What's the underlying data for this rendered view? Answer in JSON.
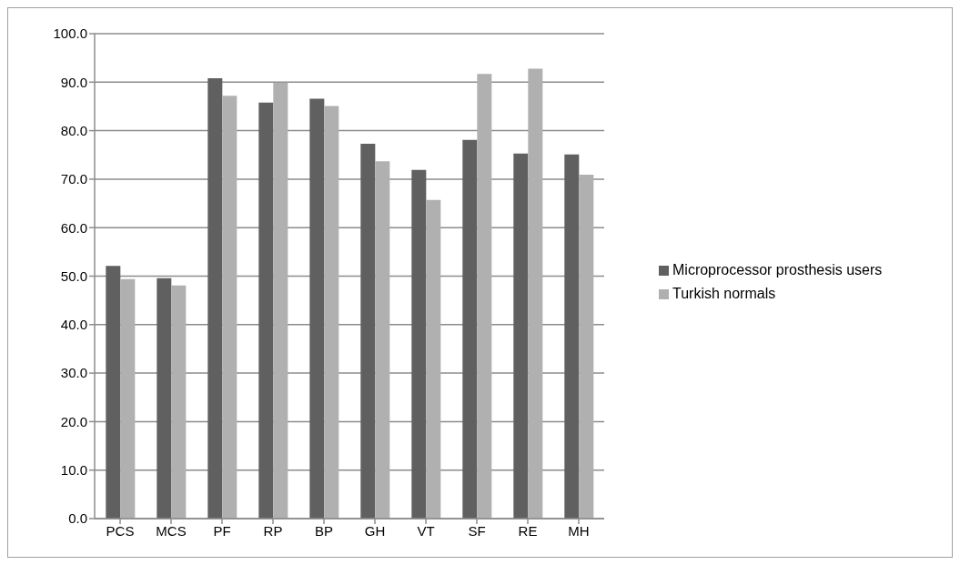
{
  "chart_data": {
    "type": "bar",
    "categories": [
      "PCS",
      "MCS",
      "PF",
      "RP",
      "BP",
      "GH",
      "VT",
      "SF",
      "RE",
      "MH"
    ],
    "series": [
      {
        "name": "Microprocessor prosthesis users",
        "color": "#606060",
        "values": [
          52.1,
          49.6,
          90.8,
          85.8,
          86.6,
          77.3,
          71.9,
          78.1,
          75.3,
          75.1
        ]
      },
      {
        "name": "Turkish normals",
        "color": "#b0b0b0",
        "values": [
          49.4,
          48.1,
          87.2,
          89.9,
          85.1,
          73.7,
          65.7,
          91.7,
          92.8,
          70.9
        ]
      }
    ],
    "ylim": [
      0,
      100
    ],
    "yticks": [
      {
        "value": 0,
        "label": "0.0"
      },
      {
        "value": 10,
        "label": "10.0"
      },
      {
        "value": 20,
        "label": "20.0"
      },
      {
        "value": 30,
        "label": "30.0"
      },
      {
        "value": 40,
        "label": "40.0"
      },
      {
        "value": 50,
        "label": "50.0"
      },
      {
        "value": 60,
        "label": "60.0"
      },
      {
        "value": 70,
        "label": "70.0"
      },
      {
        "value": 80,
        "label": "80.0"
      },
      {
        "value": 90,
        "label": "90.0"
      },
      {
        "value": 100,
        "label": "100.0"
      }
    ],
    "grid": "y",
    "legend": "right"
  }
}
